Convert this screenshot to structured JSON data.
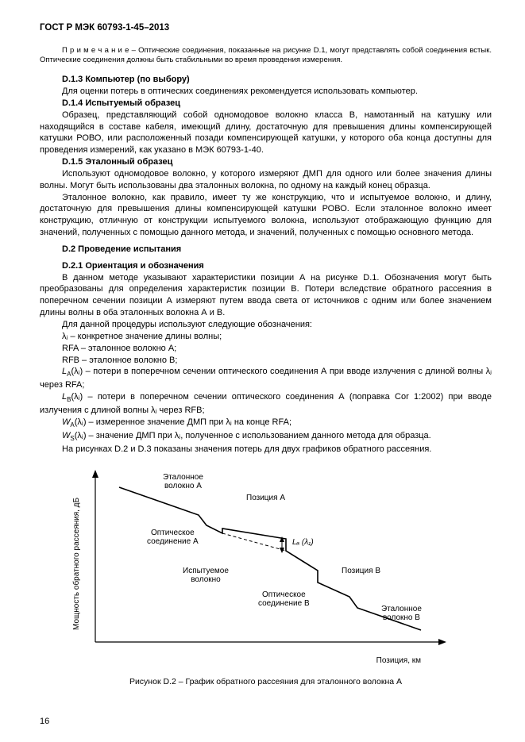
{
  "header": "ГОСТ Р МЭК 60793-1-45–2013",
  "note": "П р и м е ч а н и е – Оптические соединения, показанные на рисунке D.1, могут представлять собой соединения встык. Оптические соединения должны быть стабильными во время проведения измерения.",
  "d13_title": "D.1.3 Компьютер (по выбору)",
  "d13_text": "Для оценки потерь в оптических соединениях рекомендуется использовать компьютер.",
  "d14_title": "D.1.4 Испытуемый образец",
  "d14_text": "Образец, представляющий собой одномодовое волокно класса В, намотанный на катушку или находящийся в составе кабеля, имеющий длину, достаточную для превышения длины компенсирующей катушки РОВО, или расположенный позади компенсирующей катушки, у которого оба конца доступны для проведения измерений, как указано в МЭК 60793-1-40.",
  "d15_title": "D.1.5 Эталонный образец",
  "d15_text1": "Используют одномодовое волокно, у которого измеряют ДМП для одного или более значения длины волны. Могут быть использованы два эталонных волокна, по одному на каждый конец образца.",
  "d15_text2": "Эталонное волокно, как правило, имеет ту же конструкцию, что и испытуемое волокно, и длину, достаточную для превышения длины компенсирующей катушки РОВО. Если эталонное волокно имеет конструкцию, отличную от конструкции испытуемого волокна, используют отображающую функцию для значений, полученных с помощью данного метода, и значений, полученных с помощью основного метода.",
  "d2_title": "D.2 Проведение испытания",
  "d21_title": "D.2.1 Ориентация и обозначения",
  "d21_text1": "В данном методе указывают характеристики позиции А на рисунке D.1. Обозначения могут быть преобразованы для определения характеристик позиции В. Потери вследствие обратного рассеяния в поперечном сечении позиции А измеряют путем ввода света от источников с одним или более значением длины волны в оба эталонных волокна А и В.",
  "d21_text2": "Для данной процедуры используют следующие обозначения:",
  "sym1": "λⱼ – конкретное значение длины волны;",
  "sym2": "RFA – эталонное волокно А;",
  "sym3": "RFB – эталонное волокно В;",
  "sym4_pre": "L",
  "sym4_sub": "A",
  "sym4_arg": "(λⱼ)",
  "sym4_rest": " – потери в поперечном сечении оптического соединения А при вводе излучения с длиной волны λⱼ через RFA;",
  "sym5_pre": "L",
  "sym5_sub": "B",
  "sym5_arg": "(λⱼ)",
  "sym5_rest": " – потери в поперечном сечении оптического соединения А (поправка Cor 1:2002) при вводе излучения с длиной волны λⱼ через RFB;",
  "sym6_pre": "W",
  "sym6_sub": "A",
  "sym6_arg": "(λⱼ)",
  "sym6_rest": " – измеренное значение ДМП при λⱼ на конце RFA;",
  "sym7_pre": "W",
  "sym7_sub": "S",
  "sym7_arg": "(λⱼ)",
  "sym7_rest": " – значение ДМП при λⱼ, полученное с использованием данного метода для образца.",
  "d21_text3": "На рисунках D.2 и D.3 показаны значения потерь для двух графиков обратного рассеяния.",
  "chart": {
    "ylabel": "Мощность обратного рассеяния, дБ",
    "xlabel": "Позиция, км",
    "lbl_refA": "Эталонное\nволокно А",
    "lbl_posA": "Позиция А",
    "lbl_connA": "Оптическое\nсоединение А",
    "lbl_LA": "Lₐ (λ₁)",
    "lbl_test": "Испытуемое\nволокно",
    "lbl_posB": "Позиция В",
    "lbl_connB": "Оптическое\nсоединение В",
    "lbl_refB": "Эталонное\nволокно В",
    "trace_color": "#000000",
    "axis_color": "#000000",
    "points": [
      [
        50,
        30
      ],
      [
        150,
        65
      ],
      [
        160,
        78
      ],
      [
        180,
        88
      ],
      [
        180,
        82
      ],
      [
        260,
        95
      ],
      [
        260,
        110
      ],
      [
        300,
        135
      ],
      [
        300,
        150
      ],
      [
        340,
        168
      ],
      [
        350,
        182
      ],
      [
        430,
        210
      ]
    ]
  },
  "figcaption": "Рисунок D.2 – График обратного рассеяния для эталонного волокна А",
  "pagenum": "16"
}
